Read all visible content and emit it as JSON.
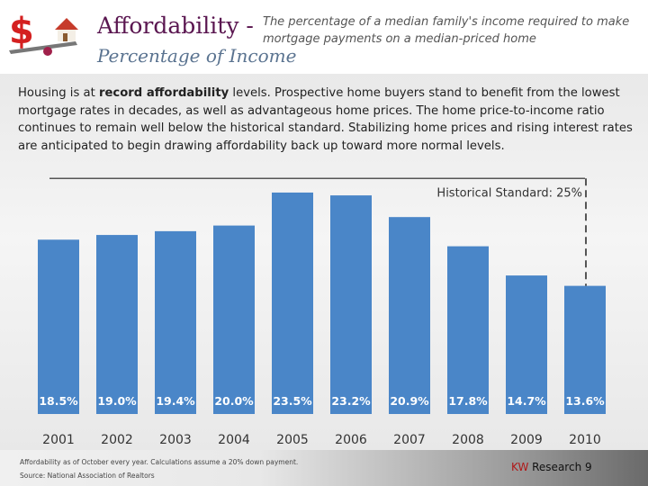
{
  "header": {
    "title": "Affordability -",
    "subtitle": "Percentage of Income",
    "description": "The percentage of a median family's income required to make mortgage payments on a median-priced home"
  },
  "intro": {
    "before": "Housing is at ",
    "bold": "record affordability",
    "after": " levels. Prospective home buyers stand to benefit from the lowest mortgage rates in decades, as well as advantageous home prices. The home price-to-income ratio continues to remain well below the historical standard.  Stabilizing home prices and rising interest rates are anticipated to begin drawing affordability back up toward more normal levels."
  },
  "chart_data": {
    "type": "bar",
    "categories": [
      "2001",
      "2002",
      "2003",
      "2004",
      "2005",
      "2006",
      "2007",
      "2008",
      "2009",
      "2010"
    ],
    "values": [
      18.5,
      19.0,
      19.4,
      20.0,
      23.5,
      23.2,
      20.9,
      17.8,
      14.7,
      13.6
    ],
    "data_labels": [
      "18.5%",
      "19.0%",
      "19.4%",
      "20.0%",
      "23.5%",
      "23.2%",
      "20.9%",
      "17.8%",
      "14.7%",
      "13.6%"
    ],
    "reference": {
      "value": 25,
      "label": "Historical Standard: 25%"
    },
    "ylim": [
      0,
      25
    ],
    "bar_color": "#4a86c8",
    "grid": false
  },
  "footer": {
    "note": "Affordability as of October every year. Calculations assume a 20% down payment.",
    "source": "Source: National Association of Realtors",
    "brand_kw": "KW",
    "brand_rest": " Research 9"
  }
}
